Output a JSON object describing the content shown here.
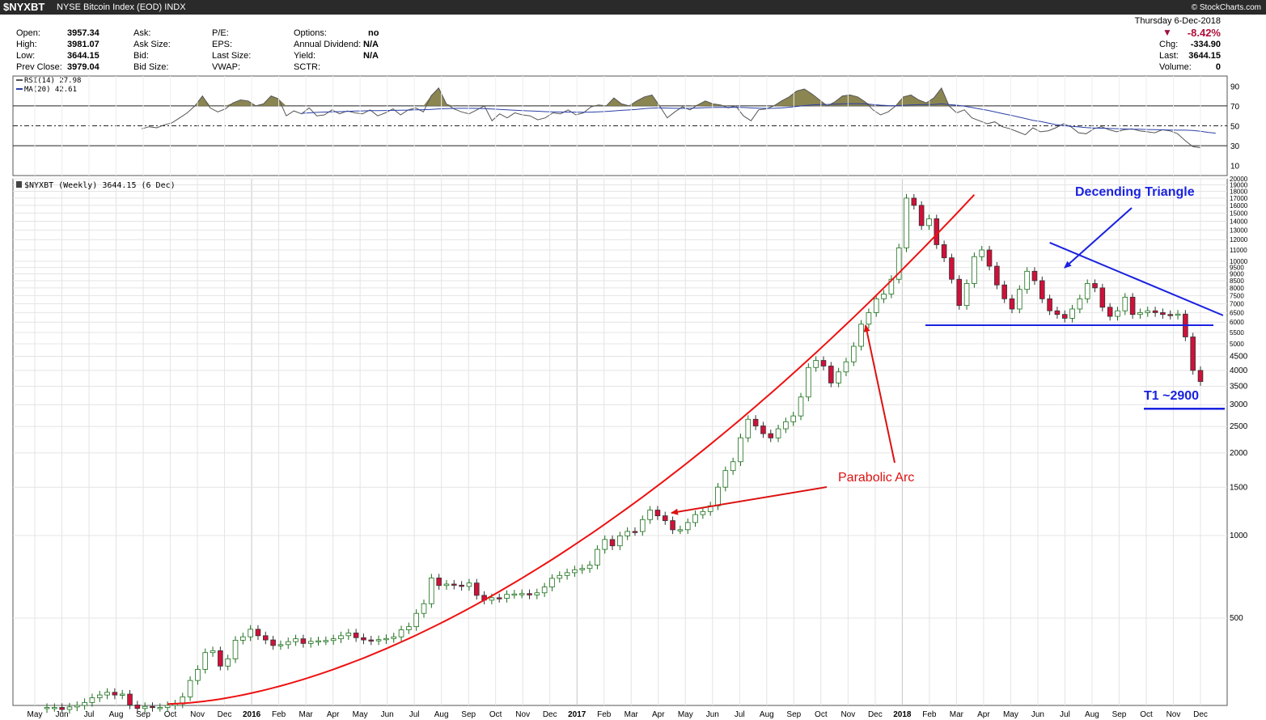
{
  "header": {
    "symbol": "$NYXBT",
    "name": "NYSE Bitcoin Index (EOD)  INDX",
    "brand": "© StockCharts.com"
  },
  "quote": {
    "open_label": "Open:",
    "open": "3957.34",
    "high_label": "High:",
    "high": "3981.07",
    "low_label": "Low:",
    "low": "3644.15",
    "prev_label": "Prev Close:",
    "prev": "3979.04",
    "ask_label": "Ask:",
    "asksize_label": "Ask Size:",
    "bid_label": "Bid:",
    "bidsize_label": "Bid Size:",
    "pe_label": "P/E:",
    "eps_label": "EPS:",
    "lastsize_label": "Last Size:",
    "vwap_label": "VWAP:",
    "options_label": "Options:",
    "options": "no",
    "dividend_label": "Annual Dividend:",
    "dividend": "N/A",
    "yield_label": "Yield:",
    "yield": "N/A",
    "sctr_label": "SCTR:",
    "date": "Thursday  6-Dec-2018",
    "change_pct": "-8.42%",
    "chg_label": "Chg:",
    "chg": "-334.90",
    "last_label": "Last:",
    "last": "3644.15",
    "volume_label": "Volume:",
    "volume": "0"
  },
  "colors": {
    "up_candle": "#ffffff",
    "down_candle": "#d0103a",
    "up_outline": "#1a6e1a",
    "rsi_fill": "#8b8552",
    "rsi_ma": "#2b3fa8",
    "arc": "#ee1111",
    "triangle": "#1a22e0",
    "anno_red": "#dd1111",
    "anno_blue": "#1a22e0"
  },
  "chart_data": [
    {
      "type": "line",
      "legend": [
        "RSI(14) 27.98",
        "MA(20) 42.61"
      ],
      "yticks": [
        10,
        30,
        50,
        70,
        90
      ],
      "ylim": [
        0,
        100
      ],
      "levels": [
        30,
        50,
        70
      ],
      "series": [
        {
          "name": "RSI(14)",
          "last": 27.98,
          "values": [
            47,
            49,
            48,
            51,
            53,
            58,
            63,
            70,
            80,
            68,
            64,
            67,
            73,
            76,
            75,
            70,
            72,
            80,
            77,
            60,
            65,
            62,
            68,
            60,
            61,
            66,
            62,
            65,
            63,
            62,
            66,
            60,
            63,
            67,
            61,
            66,
            68,
            64,
            80,
            88,
            72,
            67,
            64,
            62,
            66,
            70,
            55,
            62,
            58,
            63,
            61,
            60,
            56,
            58,
            63,
            62,
            66,
            61,
            63,
            69,
            71,
            70,
            78,
            72,
            70,
            75,
            79,
            81,
            70,
            58,
            64,
            69,
            66,
            71,
            75,
            72,
            71,
            68,
            70,
            60,
            55,
            66,
            67,
            70,
            75,
            79,
            85,
            87,
            82,
            76,
            70,
            74,
            80,
            81,
            79,
            74,
            66,
            61,
            64,
            70,
            79,
            81,
            76,
            73,
            78,
            88,
            70,
            63,
            66,
            58,
            55,
            52,
            54,
            49,
            47,
            44,
            41,
            48,
            44,
            45,
            48,
            52,
            49,
            43,
            42,
            47,
            49,
            46,
            44,
            46,
            47,
            45,
            44,
            43,
            46,
            45,
            42,
            35,
            29,
            28
          ]
        },
        {
          "name": "MA(20)",
          "last": 42.61,
          "values": [
            null,
            null,
            null,
            null,
            null,
            null,
            null,
            null,
            null,
            null,
            null,
            null,
            null,
            null,
            null,
            null,
            null,
            null,
            null,
            null,
            null,
            62.5,
            63,
            63.5,
            63.8,
            64,
            64.2,
            64.5,
            64.8,
            65,
            65.2,
            65.3,
            65.4,
            65.5,
            65.6,
            65.8,
            66,
            66.2,
            66.5,
            67,
            67.2,
            67.5,
            67.6,
            67.6,
            67.5,
            67.3,
            66.9,
            66.5,
            66,
            65.6,
            65.3,
            65,
            64.6,
            64.2,
            64,
            63.8,
            63.8,
            63.7,
            63.6,
            63.7,
            64,
            64.4,
            65,
            65.5,
            65.9,
            66.5,
            67.2,
            67.8,
            68,
            67.8,
            67.6,
            67.5,
            67.6,
            67.9,
            68.2,
            68.4,
            68.5,
            68.5,
            68.6,
            68.4,
            68,
            67.7,
            67.5,
            67.6,
            68,
            68.6,
            69.4,
            70.3,
            71,
            71.3,
            71.5,
            71.7,
            72,
            72.2,
            72.2,
            72,
            71.4,
            70.7,
            70.3,
            70.2,
            70.6,
            71,
            71.2,
            71.3,
            71.5,
            72,
            71.4,
            70.7,
            69.7,
            68.4,
            67,
            65.6,
            64,
            62.3,
            60.8,
            59,
            57.3,
            55.5,
            54.4,
            52.8,
            51.2,
            50.2,
            49.5,
            48.9,
            48.2,
            47.8,
            47.6,
            47.3,
            47.1,
            46.8,
            46.6,
            46.5,
            46.3,
            46.1,
            45.9,
            45.7,
            45.6,
            45.6,
            45.3,
            44.5,
            43.4,
            42.61
          ]
        }
      ]
    },
    {
      "type": "candlestick",
      "title": "$NYXBT (Weekly) 3644.15 (6 Dec)",
      "scale": "log",
      "ylim": [
        240,
        20000
      ],
      "yticks": [
        500,
        1000,
        1500,
        2000,
        2500,
        3000,
        3500,
        4000,
        4500,
        5000,
        5500,
        6000,
        6500,
        7000,
        7500,
        8000,
        8500,
        9000,
        9500,
        10000,
        11000,
        12000,
        13000,
        14000,
        15000,
        16000,
        17000,
        18000,
        19000,
        20000
      ],
      "x": [
        "May",
        "Jun",
        "Jul",
        "Aug",
        "Sep",
        "Oct",
        "Nov",
        "Dec",
        "2016",
        "Feb",
        "Mar",
        "Apr",
        "May",
        "Jun",
        "Jul",
        "Aug",
        "Sep",
        "Oct",
        "Nov",
        "Dec",
        "2017",
        "Feb",
        "Mar",
        "Apr",
        "May",
        "Jun",
        "Jul",
        "Aug",
        "Sep",
        "Oct",
        "Nov",
        "Dec",
        "2018",
        "Feb",
        "Mar",
        "Apr",
        "May",
        "Jun",
        "Jul",
        "Aug",
        "Sep",
        "Oct",
        "Nov",
        "Dec"
      ],
      "closes": [
        236,
        236,
        232,
        237,
        240,
        246,
        256,
        262,
        268,
        262,
        264,
        241,
        234,
        238,
        236,
        236,
        240,
        243,
        258,
        296,
        325,
        374,
        380,
        334,
        355,
        415,
        427,
        455,
        431,
        416,
        397,
        400,
        410,
        420,
        404,
        411,
        413,
        414,
        420,
        431,
        441,
        424,
        416,
        413,
        417,
        421,
        427,
        453,
        465,
        520,
        564,
        700,
        657,
        665,
        659,
        652,
        671,
        605,
        581,
        593,
        590,
        610,
        612,
        614,
        607,
        618,
        649,
        698,
        715,
        732,
        750,
        758,
        780,
        890,
        967,
        917,
        997,
        1035,
        1034,
        1143,
        1238,
        1180,
        1133,
        1049,
        1050,
        1115,
        1192,
        1223,
        1283,
        1501,
        1725,
        1858,
        2272,
        2654,
        2510,
        2352,
        2270,
        2450,
        2600,
        2730,
        3200,
        4100,
        4350,
        4150,
        3600,
        3950,
        4300,
        4900,
        5900,
        6500,
        7300,
        7600,
        8600,
        11200,
        17000,
        16000,
        13500,
        14300,
        11500,
        10300,
        8600,
        6900,
        8300,
        10400,
        11000,
        9600,
        8200,
        7300,
        6700,
        7900,
        9200,
        8500,
        7300,
        6600,
        6400,
        6200,
        6700,
        7300,
        8300,
        8000,
        6800,
        6300,
        6600,
        7400,
        6400,
        6500,
        6600,
        6500,
        6400,
        6360,
        6420,
        5300,
        4000,
        3644.15
      ]
    }
  ],
  "annotations": {
    "triangle_label": "Decending Triangle",
    "arc_label": "Parabolic Arc",
    "target_label": "T1 ~2900"
  }
}
